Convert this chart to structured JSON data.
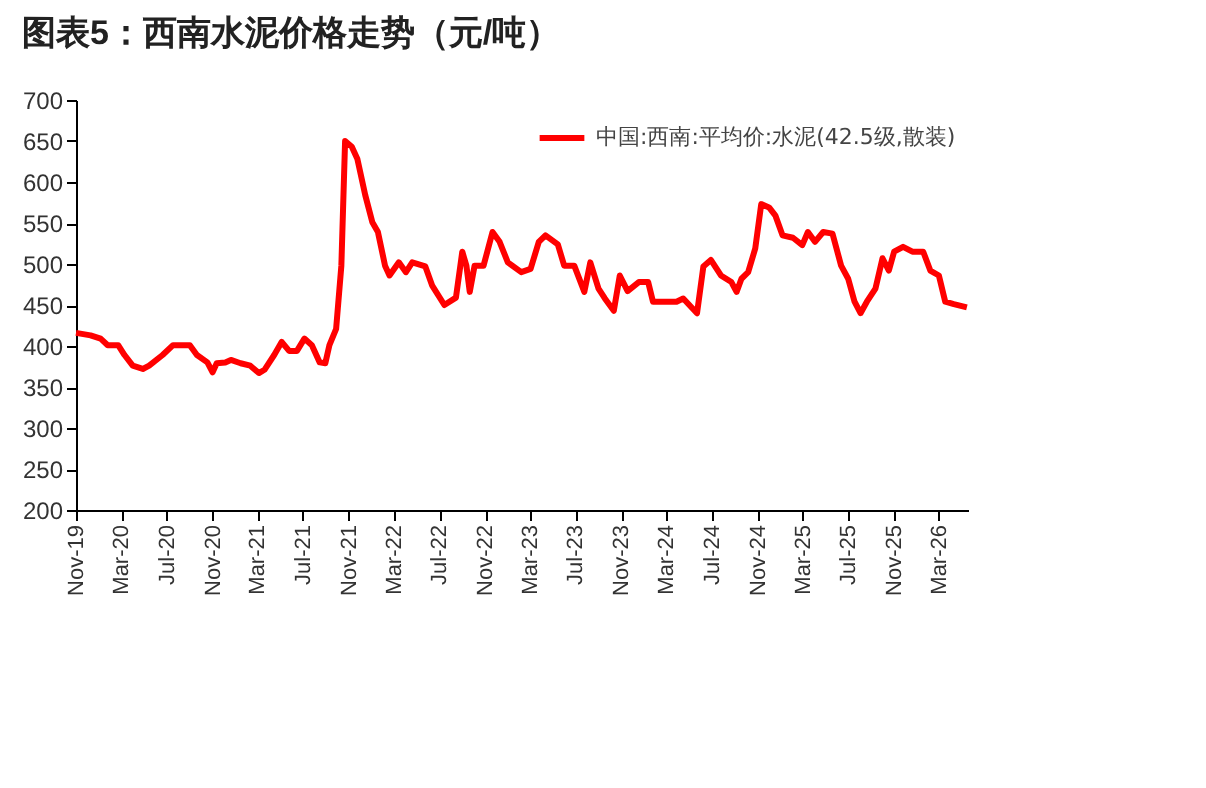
{
  "chart_data": {
    "type": "line",
    "title": "图表5：西南水泥价格走势（元/吨）",
    "legend": "top right",
    "xlim": [
      "2019-11-01",
      "2026-05-18"
    ],
    "ylim": [
      200,
      700
    ],
    "yticks": [
      200,
      250,
      300,
      350,
      400,
      450,
      500,
      550,
      600,
      650,
      700
    ],
    "xticks": [
      {
        "value": "2019-11-01",
        "label": "Nov-19"
      },
      {
        "value": "2020-03-01",
        "label": "Mar-20"
      },
      {
        "value": "2020-07-01",
        "label": "Jul-20"
      },
      {
        "value": "2020-11-01",
        "label": "Nov-20"
      },
      {
        "value": "2021-03-01",
        "label": "Mar-21"
      },
      {
        "value": "2021-07-01",
        "label": "Jul-21"
      },
      {
        "value": "2021-11-01",
        "label": "Nov-21"
      },
      {
        "value": "2022-03-01",
        "label": "Mar-22"
      },
      {
        "value": "2022-07-01",
        "label": "Jul-22"
      },
      {
        "value": "2022-11-01",
        "label": "Nov-22"
      },
      {
        "value": "2023-03-01",
        "label": "Mar-23"
      },
      {
        "value": "2023-07-01",
        "label": "Jul-23"
      },
      {
        "value": "2023-11-01",
        "label": "Nov-23"
      },
      {
        "value": "2024-03-01",
        "label": "Mar-24"
      },
      {
        "value": "2024-07-01",
        "label": "Jul-24"
      },
      {
        "value": "2024-11-01",
        "label": "Nov-24"
      },
      {
        "value": "2025-03-01",
        "label": "Mar-25"
      },
      {
        "value": "2025-07-01",
        "label": "Jul-25"
      },
      {
        "value": "2025-11-01",
        "label": "Nov-25"
      },
      {
        "value": "2026-03-01",
        "label": "Mar-26"
      }
    ],
    "x": [
      "2019-11-01",
      "2019-12-10",
      "2020-01-06",
      "2020-01-25",
      "2020-02-22",
      "2020-03-10",
      "2020-04-01",
      "2020-04-28",
      "2020-05-15",
      "2020-06-20",
      "2020-07-18",
      "2020-09-01",
      "2020-09-20",
      "2020-10-18",
      "2020-11-01",
      "2020-11-12",
      "2020-12-05",
      "2020-12-20",
      "2021-01-15",
      "2021-02-10",
      "2021-03-05",
      "2021-03-20",
      "2021-04-15",
      "2021-05-05",
      "2021-05-25",
      "2021-06-15",
      "2021-07-05",
      "2021-07-25",
      "2021-08-15",
      "2021-08-30",
      "2021-09-10",
      "2021-09-28",
      "2021-10-12",
      "2021-10-22",
      "2021-11-09",
      "2021-11-24",
      "2021-12-15",
      "2022-01-03",
      "2022-01-18",
      "2022-02-06",
      "2022-02-18",
      "2022-03-15",
      "2022-04-03",
      "2022-04-20",
      "2022-05-25",
      "2022-06-12",
      "2022-07-15",
      "2022-08-15",
      "2022-09-01",
      "2022-09-12",
      "2022-09-21",
      "2022-10-04",
      "2022-10-28",
      "2022-11-21",
      "2022-12-10",
      "2023-01-01",
      "2023-02-06",
      "2023-03-03",
      "2023-03-25",
      "2023-04-12",
      "2023-05-15",
      "2023-06-01",
      "2023-06-28",
      "2023-07-25",
      "2023-08-10",
      "2023-09-01",
      "2023-09-18",
      "2023-10-12",
      "2023-10-28",
      "2023-11-18",
      "2023-12-18",
      "2024-01-12",
      "2024-01-25",
      "2024-03-28",
      "2024-04-15",
      "2024-05-22",
      "2024-06-08",
      "2024-06-28",
      "2024-07-25",
      "2024-08-22",
      "2024-09-05",
      "2024-09-18",
      "2024-10-06",
      "2024-10-25",
      "2024-11-10",
      "2024-12-01",
      "2024-12-18",
      "2025-01-06",
      "2025-02-03",
      "2025-02-28",
      "2025-03-15",
      "2025-04-03",
      "2025-04-25",
      "2025-05-20",
      "2025-06-12",
      "2025-07-01",
      "2025-07-18",
      "2025-08-03",
      "2025-08-20",
      "2025-09-12",
      "2025-10-01",
      "2025-10-18",
      "2025-11-01",
      "2025-11-25",
      "2025-12-20",
      "2026-01-18",
      "2026-02-06",
      "2026-03-01",
      "2026-03-18",
      "2026-04-10",
      "2026-05-15"
    ],
    "series": [
      {
        "name": "中国:西南:平均价:水泥(42.5级,散装)",
        "color": "#ff0000",
        "values": [
          416,
          413,
          409,
          401,
          401,
          389,
          376,
          372,
          376,
          389,
          401,
          401,
          389,
          380,
          368,
          379,
          380,
          383,
          379,
          376,
          367,
          371,
          389,
          405,
          394,
          394,
          409,
          401,
          380,
          379,
          401,
          421,
          498,
          650,
          643,
          628,
          584,
          551,
          539,
          498,
          486,
          502,
          490,
          502,
          497,
          474,
          450,
          459,
          515,
          498,
          466,
          498,
          498,
          539,
          527,
          502,
          490,
          494,
          527,
          535,
          524,
          498,
          498,
          466,
          502,
          470,
          458,
          443,
          486,
          467,
          478,
          478,
          454,
          454,
          458,
          440,
          497,
          505,
          486,
          478,
          466,
          482,
          490,
          519,
          573,
          569,
          559,
          535,
          532,
          523,
          539,
          527,
          539,
          537,
          498,
          482,
          454,
          440,
          454,
          470,
          507,
          492,
          515,
          521,
          515,
          515,
          492,
          486,
          454,
          451,
          447
        ]
      }
    ]
  }
}
